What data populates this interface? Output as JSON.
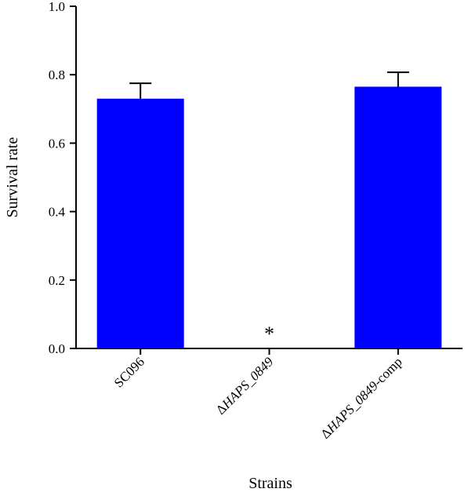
{
  "chart_data": {
    "type": "bar",
    "categories": [
      {
        "prefix": "",
        "italic": "",
        "suffix": "SC096"
      },
      {
        "prefix": "Δ",
        "italic": "HAPS_0849",
        "suffix": ""
      },
      {
        "prefix": "Δ",
        "italic": "HAPS_0849",
        "suffix": "-comp"
      }
    ],
    "values": [
      0.73,
      0.0,
      0.765
    ],
    "errors": [
      0.045,
      0.0,
      0.042
    ],
    "significance": [
      "",
      "*",
      ""
    ],
    "bar_color": "#0000ff",
    "xlabel": "Strains",
    "ylabel": "Survival rate",
    "ylim": [
      0,
      1.0
    ],
    "yticks": [
      "0.0",
      "0.2",
      "0.4",
      "0.6",
      "0.8",
      "1.0"
    ],
    "grid": false,
    "legend": "none"
  }
}
